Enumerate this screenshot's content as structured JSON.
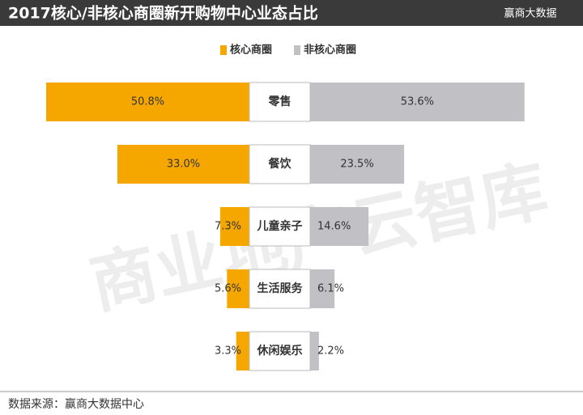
{
  "chart_data": {
    "type": "butterfly-bar",
    "title": "2017核心/非核心商圈新开购物中心业态占比",
    "logo": "赢商大数据",
    "watermark": "商业地产云智库",
    "source": "数据来源：赢商大数据中心",
    "categories": [
      "零售",
      "餐饮",
      "儿童亲子",
      "生活服务",
      "休闲娱乐"
    ],
    "series": [
      {
        "name": "核心商圈",
        "color": "#f5a700",
        "values": [
          50.8,
          33.0,
          7.3,
          5.6,
          3.3
        ],
        "value_labels": [
          "50.8%",
          "33.0%",
          "7.3%",
          "5.6%",
          "3.3%"
        ]
      },
      {
        "name": "非核心商圈",
        "color": "#c1c0c5",
        "values": [
          53.6,
          23.5,
          14.6,
          6.1,
          2.2
        ],
        "value_labels": [
          "53.6%",
          "23.5%",
          "14.6%",
          "6.1%",
          "2.2%"
        ]
      }
    ]
  }
}
